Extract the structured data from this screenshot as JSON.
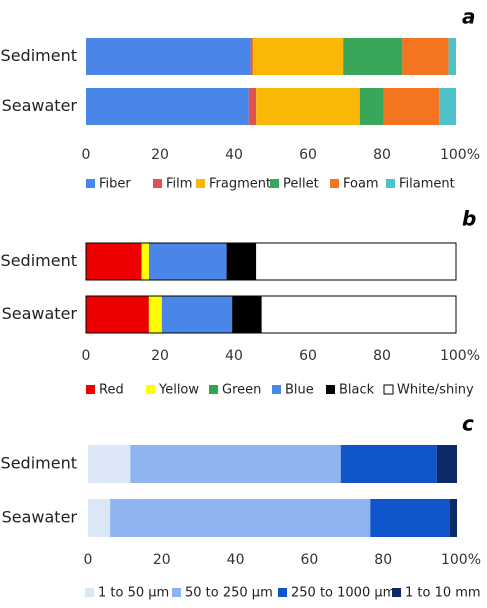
{
  "chart_data": [
    {
      "type": "bar",
      "orientation": "horizontal",
      "stacked": true,
      "panel_label": "a",
      "categories": [
        "Sediment",
        "Seawater"
      ],
      "series": [
        {
          "name": "Fiber",
          "color": "#4a86e8",
          "values": [
            44.5,
            44.0
          ]
        },
        {
          "name": "Film",
          "color": "#e05252",
          "values": [
            0.5,
            2.0
          ]
        },
        {
          "name": "Fragment",
          "color": "#f9b806",
          "values": [
            24.5,
            28.0
          ]
        },
        {
          "name": "Pellet",
          "color": "#3aa65b",
          "values": [
            16.0,
            6.5
          ]
        },
        {
          "name": "Foam",
          "color": "#f47421",
          "values": [
            12.5,
            15.0
          ]
        },
        {
          "name": "Filament",
          "color": "#4fc1c9",
          "values": [
            2.0,
            4.5
          ]
        }
      ],
      "xlim": [
        0,
        100
      ],
      "ticks": [
        "0",
        "20",
        "40",
        "60",
        "80",
        "100%"
      ],
      "grid": false,
      "legend": "bottom"
    },
    {
      "type": "bar",
      "orientation": "horizontal",
      "stacked": true,
      "panel_label": "b",
      "categories": [
        "Sediment",
        "Seawater"
      ],
      "series": [
        {
          "name": "Red",
          "color": "#ee0000",
          "values": [
            15.0,
            17.0
          ]
        },
        {
          "name": "Yellow",
          "color": "#ffff00",
          "values": [
            2.0,
            3.5
          ]
        },
        {
          "name": "Green",
          "color": "#33a64b",
          "values": [
            0,
            0
          ]
        },
        {
          "name": "Blue",
          "color": "#4a86e8",
          "values": [
            21.0,
            19.0
          ]
        },
        {
          "name": "Black",
          "color": "#000000",
          "values": [
            8.0,
            8.0
          ]
        },
        {
          "name": "White/shiny",
          "color": "#ffffff",
          "values": [
            54.0,
            52.5
          ]
        }
      ],
      "xlim": [
        0,
        100
      ],
      "ticks": [
        "0",
        "20",
        "40",
        "60",
        "80",
        "100%"
      ],
      "grid": false,
      "legend": "bottom"
    },
    {
      "type": "bar",
      "orientation": "horizontal",
      "stacked": true,
      "panel_label": "c",
      "categories": [
        "Sediment",
        "Seawater"
      ],
      "series": [
        {
          "name": "1 to 50 µm",
          "color": "#dbe6f7",
          "values": [
            11.5,
            6.0
          ]
        },
        {
          "name": "50 to 250 µm",
          "color": "#8eb4ef",
          "values": [
            57.0,
            70.5
          ]
        },
        {
          "name": "250 to 1000 µm",
          "color": "#1155cc",
          "values": [
            26.0,
            21.5
          ]
        },
        {
          "name": "1 to 10 mm",
          "color": "#0b2a66",
          "values": [
            5.5,
            2.0
          ]
        }
      ],
      "xlim": [
        0,
        100
      ],
      "ticks": [
        "0",
        "20",
        "40",
        "60",
        "80",
        "100%"
      ],
      "grid": false,
      "legend": "bottom"
    }
  ]
}
